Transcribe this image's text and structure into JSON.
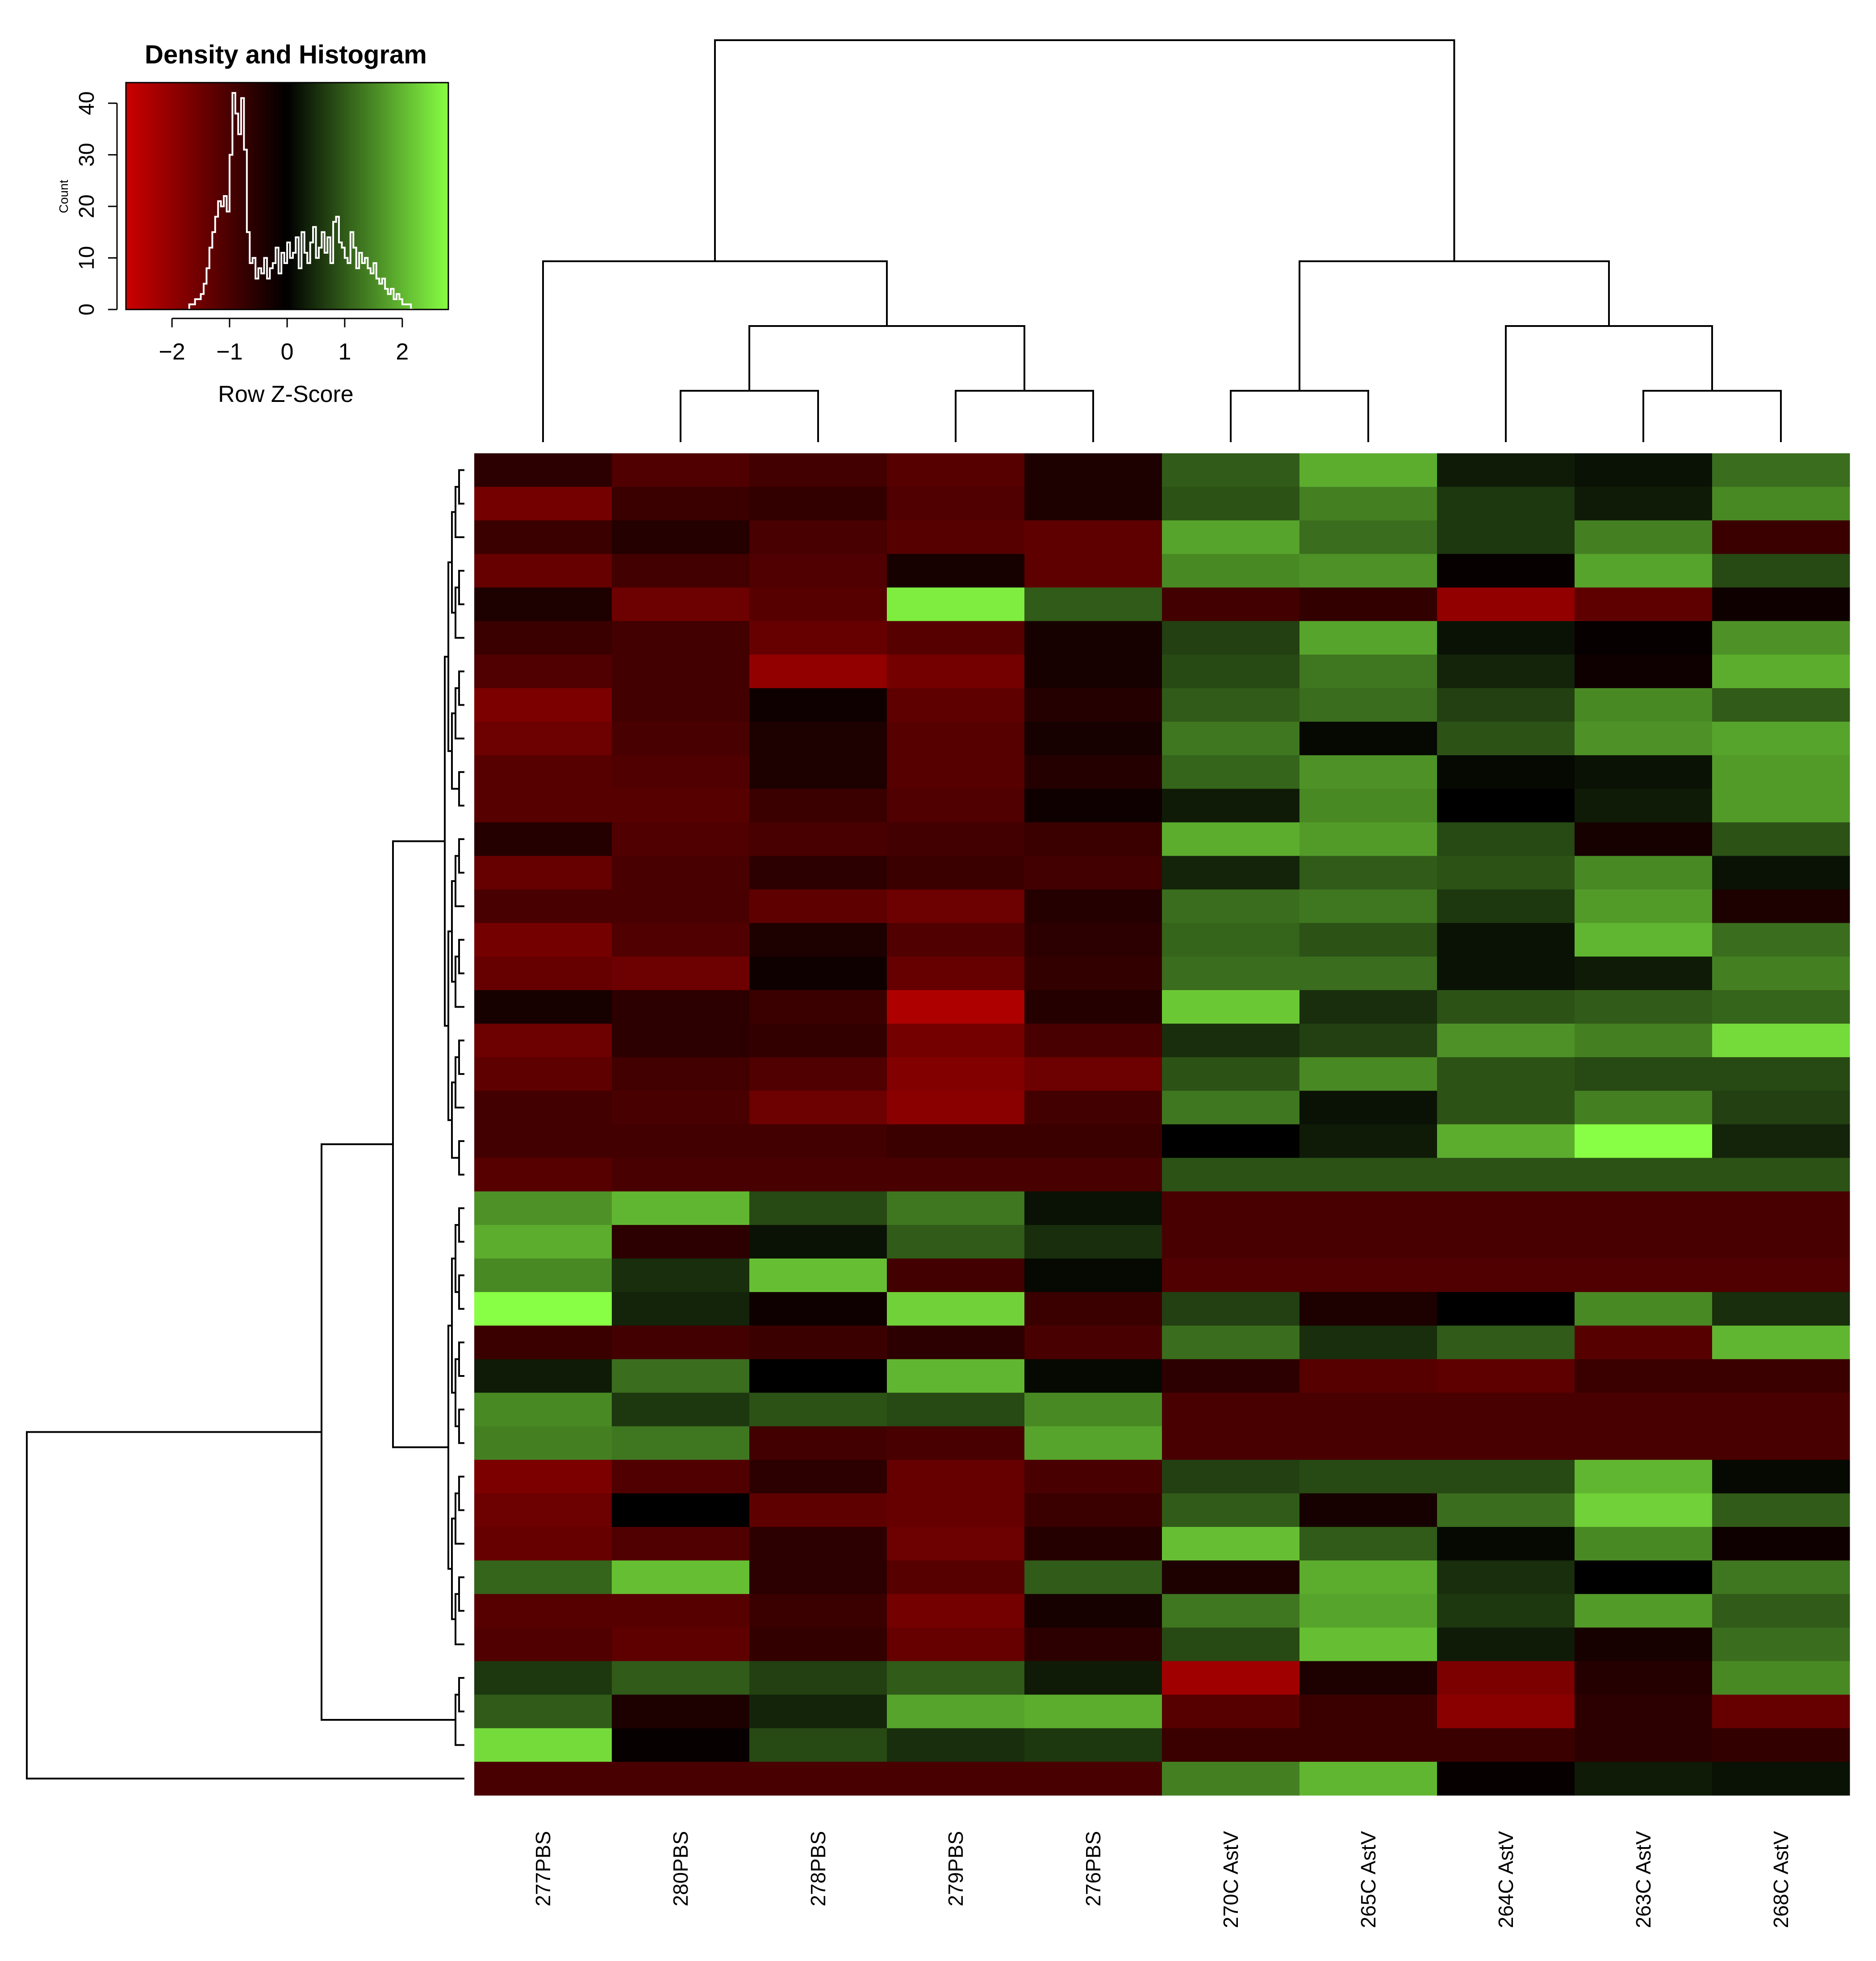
{
  "chart_data": [
    {
      "type": "heatmap",
      "title": "",
      "xlabel": "",
      "ylabel": "",
      "columns": [
        "277PBS",
        "280PBS",
        "278PBS",
        "279PBS",
        "276PBS",
        "270C AstV",
        "265C AstV",
        "264C AstV",
        "263C AstV",
        "268C AstV"
      ],
      "color_scale": {
        "low": "#cc0000",
        "mid": "#000000",
        "high": "#88ff44",
        "range": [
          -2.8,
          2.8
        ]
      },
      "column_dendrogram": true,
      "row_dendrogram": true,
      "values": [
        [
          -0.6,
          -1.1,
          -0.9,
          -1.2,
          -0.4,
          1.0,
          1.9,
          0.3,
          0.2,
          1.2
        ],
        [
          -1.6,
          -0.8,
          -0.7,
          -1.1,
          -0.4,
          0.9,
          1.4,
          0.6,
          0.3,
          1.5
        ],
        [
          -0.8,
          -0.5,
          -1.0,
          -1.2,
          -1.3,
          1.8,
          1.2,
          0.6,
          1.4,
          -0.8
        ],
        [
          -1.4,
          -0.9,
          -1.1,
          -0.3,
          -1.3,
          1.5,
          1.6,
          -0.1,
          1.8,
          0.8
        ],
        [
          -0.4,
          -1.5,
          -1.2,
          2.6,
          1.0,
          -0.9,
          -0.7,
          -2.0,
          -1.3,
          -0.2
        ],
        [
          -0.8,
          -0.9,
          -1.4,
          -1.2,
          -0.3,
          0.7,
          1.8,
          0.2,
          -0.1,
          1.6
        ],
        [
          -1.1,
          -0.9,
          -2.0,
          -1.6,
          -0.3,
          0.8,
          1.3,
          0.4,
          -0.2,
          1.9
        ],
        [
          -1.7,
          -0.9,
          -0.2,
          -1.3,
          -0.5,
          1.0,
          1.2,
          0.7,
          1.5,
          1.0
        ],
        [
          -1.5,
          -1.0,
          -0.4,
          -1.2,
          -0.3,
          1.3,
          0.1,
          0.9,
          1.6,
          1.8
        ],
        [
          -1.2,
          -1.1,
          -0.4,
          -1.2,
          -0.5,
          1.1,
          1.6,
          0.1,
          0.2,
          1.7
        ],
        [
          -1.2,
          -1.2,
          -0.8,
          -1.1,
          -0.2,
          0.3,
          1.5,
          0.0,
          0.3,
          1.7
        ],
        [
          -0.5,
          -1.1,
          -1.0,
          -0.9,
          -0.8,
          1.9,
          1.7,
          0.8,
          -0.3,
          0.9
        ],
        [
          -1.4,
          -1.0,
          -0.6,
          -0.8,
          -0.9,
          0.4,
          1.0,
          0.9,
          1.5,
          0.2
        ],
        [
          -1.0,
          -1.0,
          -1.3,
          -1.5,
          -0.5,
          1.2,
          1.3,
          0.6,
          1.7,
          -0.4
        ],
        [
          -1.6,
          -1.1,
          -0.4,
          -1.1,
          -0.6,
          1.1,
          0.9,
          0.2,
          2.0,
          1.2
        ],
        [
          -1.4,
          -1.5,
          -0.2,
          -1.4,
          -0.7,
          1.2,
          1.2,
          0.2,
          0.3,
          1.4
        ],
        [
          -0.3,
          -0.6,
          -0.8,
          -2.4,
          -0.5,
          2.2,
          0.5,
          0.9,
          1.0,
          1.1
        ],
        [
          -1.5,
          -0.6,
          -0.7,
          -1.6,
          -1.0,
          0.5,
          0.7,
          1.6,
          1.4,
          2.4
        ],
        [
          -1.3,
          -0.9,
          -1.1,
          -1.8,
          -1.5,
          0.9,
          1.5,
          0.9,
          0.8,
          0.8
        ],
        [
          -0.9,
          -1.0,
          -1.5,
          -1.9,
          -0.9,
          1.3,
          0.2,
          0.9,
          1.4,
          0.7
        ],
        [
          -0.9,
          -0.9,
          -0.9,
          -0.8,
          -0.8,
          0.0,
          0.3,
          1.9,
          2.8,
          0.4
        ],
        [
          -1.2,
          -1.0,
          -1.0,
          -1.0,
          -1.0,
          0.9,
          0.9,
          0.9,
          0.9,
          0.9
        ],
        [
          1.6,
          2.0,
          0.8,
          1.3,
          0.2,
          -1.0,
          -1.0,
          -1.0,
          -1.0,
          -1.0
        ],
        [
          1.9,
          -0.6,
          0.2,
          1.0,
          0.5,
          -1.0,
          -1.0,
          -1.0,
          -1.0,
          -1.0
        ],
        [
          1.5,
          0.5,
          2.1,
          -0.9,
          0.1,
          -1.1,
          -1.1,
          -1.1,
          -1.1,
          -1.1
        ],
        [
          2.8,
          0.4,
          -0.2,
          2.3,
          -0.8,
          0.7,
          -0.4,
          0.0,
          1.5,
          0.5
        ],
        [
          -0.8,
          -0.9,
          -0.8,
          -0.6,
          -1.0,
          1.2,
          0.5,
          1.0,
          -1.2,
          2.0
        ],
        [
          0.3,
          1.2,
          0.0,
          2.0,
          0.1,
          -0.6,
          -1.2,
          -1.3,
          -0.8,
          -0.8
        ],
        [
          1.5,
          0.6,
          0.9,
          0.8,
          1.5,
          -1.0,
          -1.0,
          -1.0,
          -1.0,
          -1.0
        ],
        [
          1.4,
          1.3,
          -0.9,
          -1.0,
          1.8,
          -1.0,
          -1.0,
          -1.0,
          -1.0,
          -1.0
        ],
        [
          -1.7,
          -1.1,
          -0.6,
          -1.4,
          -1.0,
          0.7,
          0.8,
          0.8,
          2.0,
          0.1
        ],
        [
          -1.5,
          0.0,
          -1.3,
          -1.4,
          -0.8,
          1.0,
          -0.3,
          1.2,
          2.3,
          1.0
        ],
        [
          -1.4,
          -1.1,
          -0.6,
          -1.5,
          -0.5,
          2.1,
          1.0,
          0.1,
          1.5,
          -0.2
        ],
        [
          1.1,
          2.1,
          -0.6,
          -1.2,
          1.0,
          -0.4,
          1.9,
          0.5,
          0.0,
          1.3
        ],
        [
          -1.2,
          -1.2,
          -0.8,
          -1.6,
          -0.3,
          1.3,
          1.8,
          0.6,
          1.7,
          1.0
        ],
        [
          -1.1,
          -1.3,
          -0.7,
          -1.4,
          -0.6,
          0.8,
          2.1,
          0.3,
          -0.3,
          1.2
        ],
        [
          0.6,
          1.0,
          0.7,
          1.0,
          0.3,
          -2.2,
          -0.4,
          -1.7,
          -0.5,
          1.5
        ],
        [
          1.0,
          -0.4,
          0.4,
          1.8,
          1.9,
          -1.2,
          -0.8,
          -1.9,
          -0.6,
          -1.4
        ],
        [
          2.4,
          -0.1,
          0.8,
          0.5,
          0.6,
          -0.8,
          -0.8,
          -0.8,
          -0.6,
          -0.7
        ],
        [
          -1.0,
          -1.0,
          -1.0,
          -1.0,
          -1.0,
          1.4,
          2.0,
          -0.1,
          0.3,
          0.2
        ]
      ]
    },
    {
      "type": "histogram",
      "title": "Density and Histogram",
      "xlabel": "Row Z-Score",
      "ylabel": "Count",
      "xlim": [
        -2.8,
        2.8
      ],
      "ylim": [
        0,
        44
      ],
      "x_ticks": [
        -2,
        -1,
        0,
        1,
        2
      ],
      "y_ticks": [
        0,
        10,
        20,
        30,
        40
      ],
      "bin_start": -1.7,
      "bin_width": 0.05,
      "counts": [
        1,
        1,
        2,
        2,
        3,
        5,
        8,
        12,
        15,
        18,
        21,
        20,
        22,
        19,
        30,
        42,
        38,
        34,
        41,
        31,
        15,
        9,
        10,
        6,
        8,
        7,
        10,
        6,
        8,
        9,
        12,
        7,
        11,
        9,
        13,
        10,
        11,
        14,
        8,
        15,
        11,
        9,
        13,
        16,
        10,
        12,
        15,
        11,
        14,
        9,
        17,
        18,
        13,
        12,
        10,
        9,
        15,
        12,
        8,
        11,
        9,
        10,
        8,
        7,
        9,
        6,
        5,
        6,
        4,
        3,
        4,
        2,
        3,
        2,
        1,
        1,
        1,
        0
      ]
    }
  ]
}
